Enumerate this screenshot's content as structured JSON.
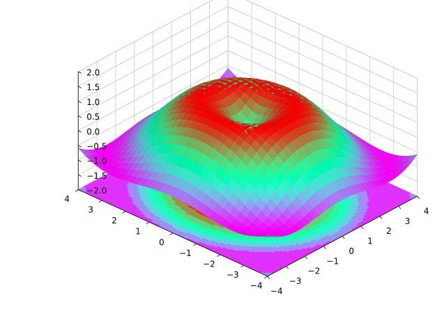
{
  "chart_data": {
    "type": "surface3d",
    "function": "sin(sqrt(x^2 + y^2))",
    "colormap": "rainbow",
    "projection": "filled contour of the surface on the plane z = -2",
    "grid": true,
    "xlim": [
      -4,
      4
    ],
    "ylim": [
      -4,
      4
    ],
    "zlim": [
      -2,
      2
    ],
    "x_ticks": [
      -4,
      -3,
      -2,
      -1,
      0,
      1,
      2,
      3,
      4
    ],
    "y_ticks": [
      -4,
      -3,
      -2,
      -1,
      0,
      1,
      2,
      3,
      4
    ],
    "z_ticks": [
      -2.0,
      -1.5,
      -1.0,
      -0.5,
      0.0,
      0.5,
      1.0,
      1.5,
      2.0
    ],
    "x_tick_labels": [
      "−4",
      "−3",
      "−2",
      "−1",
      "0",
      "1",
      "2",
      "3",
      "4"
    ],
    "y_tick_labels": [
      "−4",
      "−3",
      "−2",
      "−1",
      "0",
      "1",
      "2",
      "3",
      "4"
    ],
    "z_tick_labels": [
      "−2.0",
      "−1.5",
      "−1.0",
      "−0.5",
      "0.0",
      "0.5",
      "1.0",
      "1.5",
      "2.0"
    ],
    "grid_step": 0.25,
    "title": "",
    "xlabel": "",
    "ylabel": "",
    "zlabel": ""
  }
}
